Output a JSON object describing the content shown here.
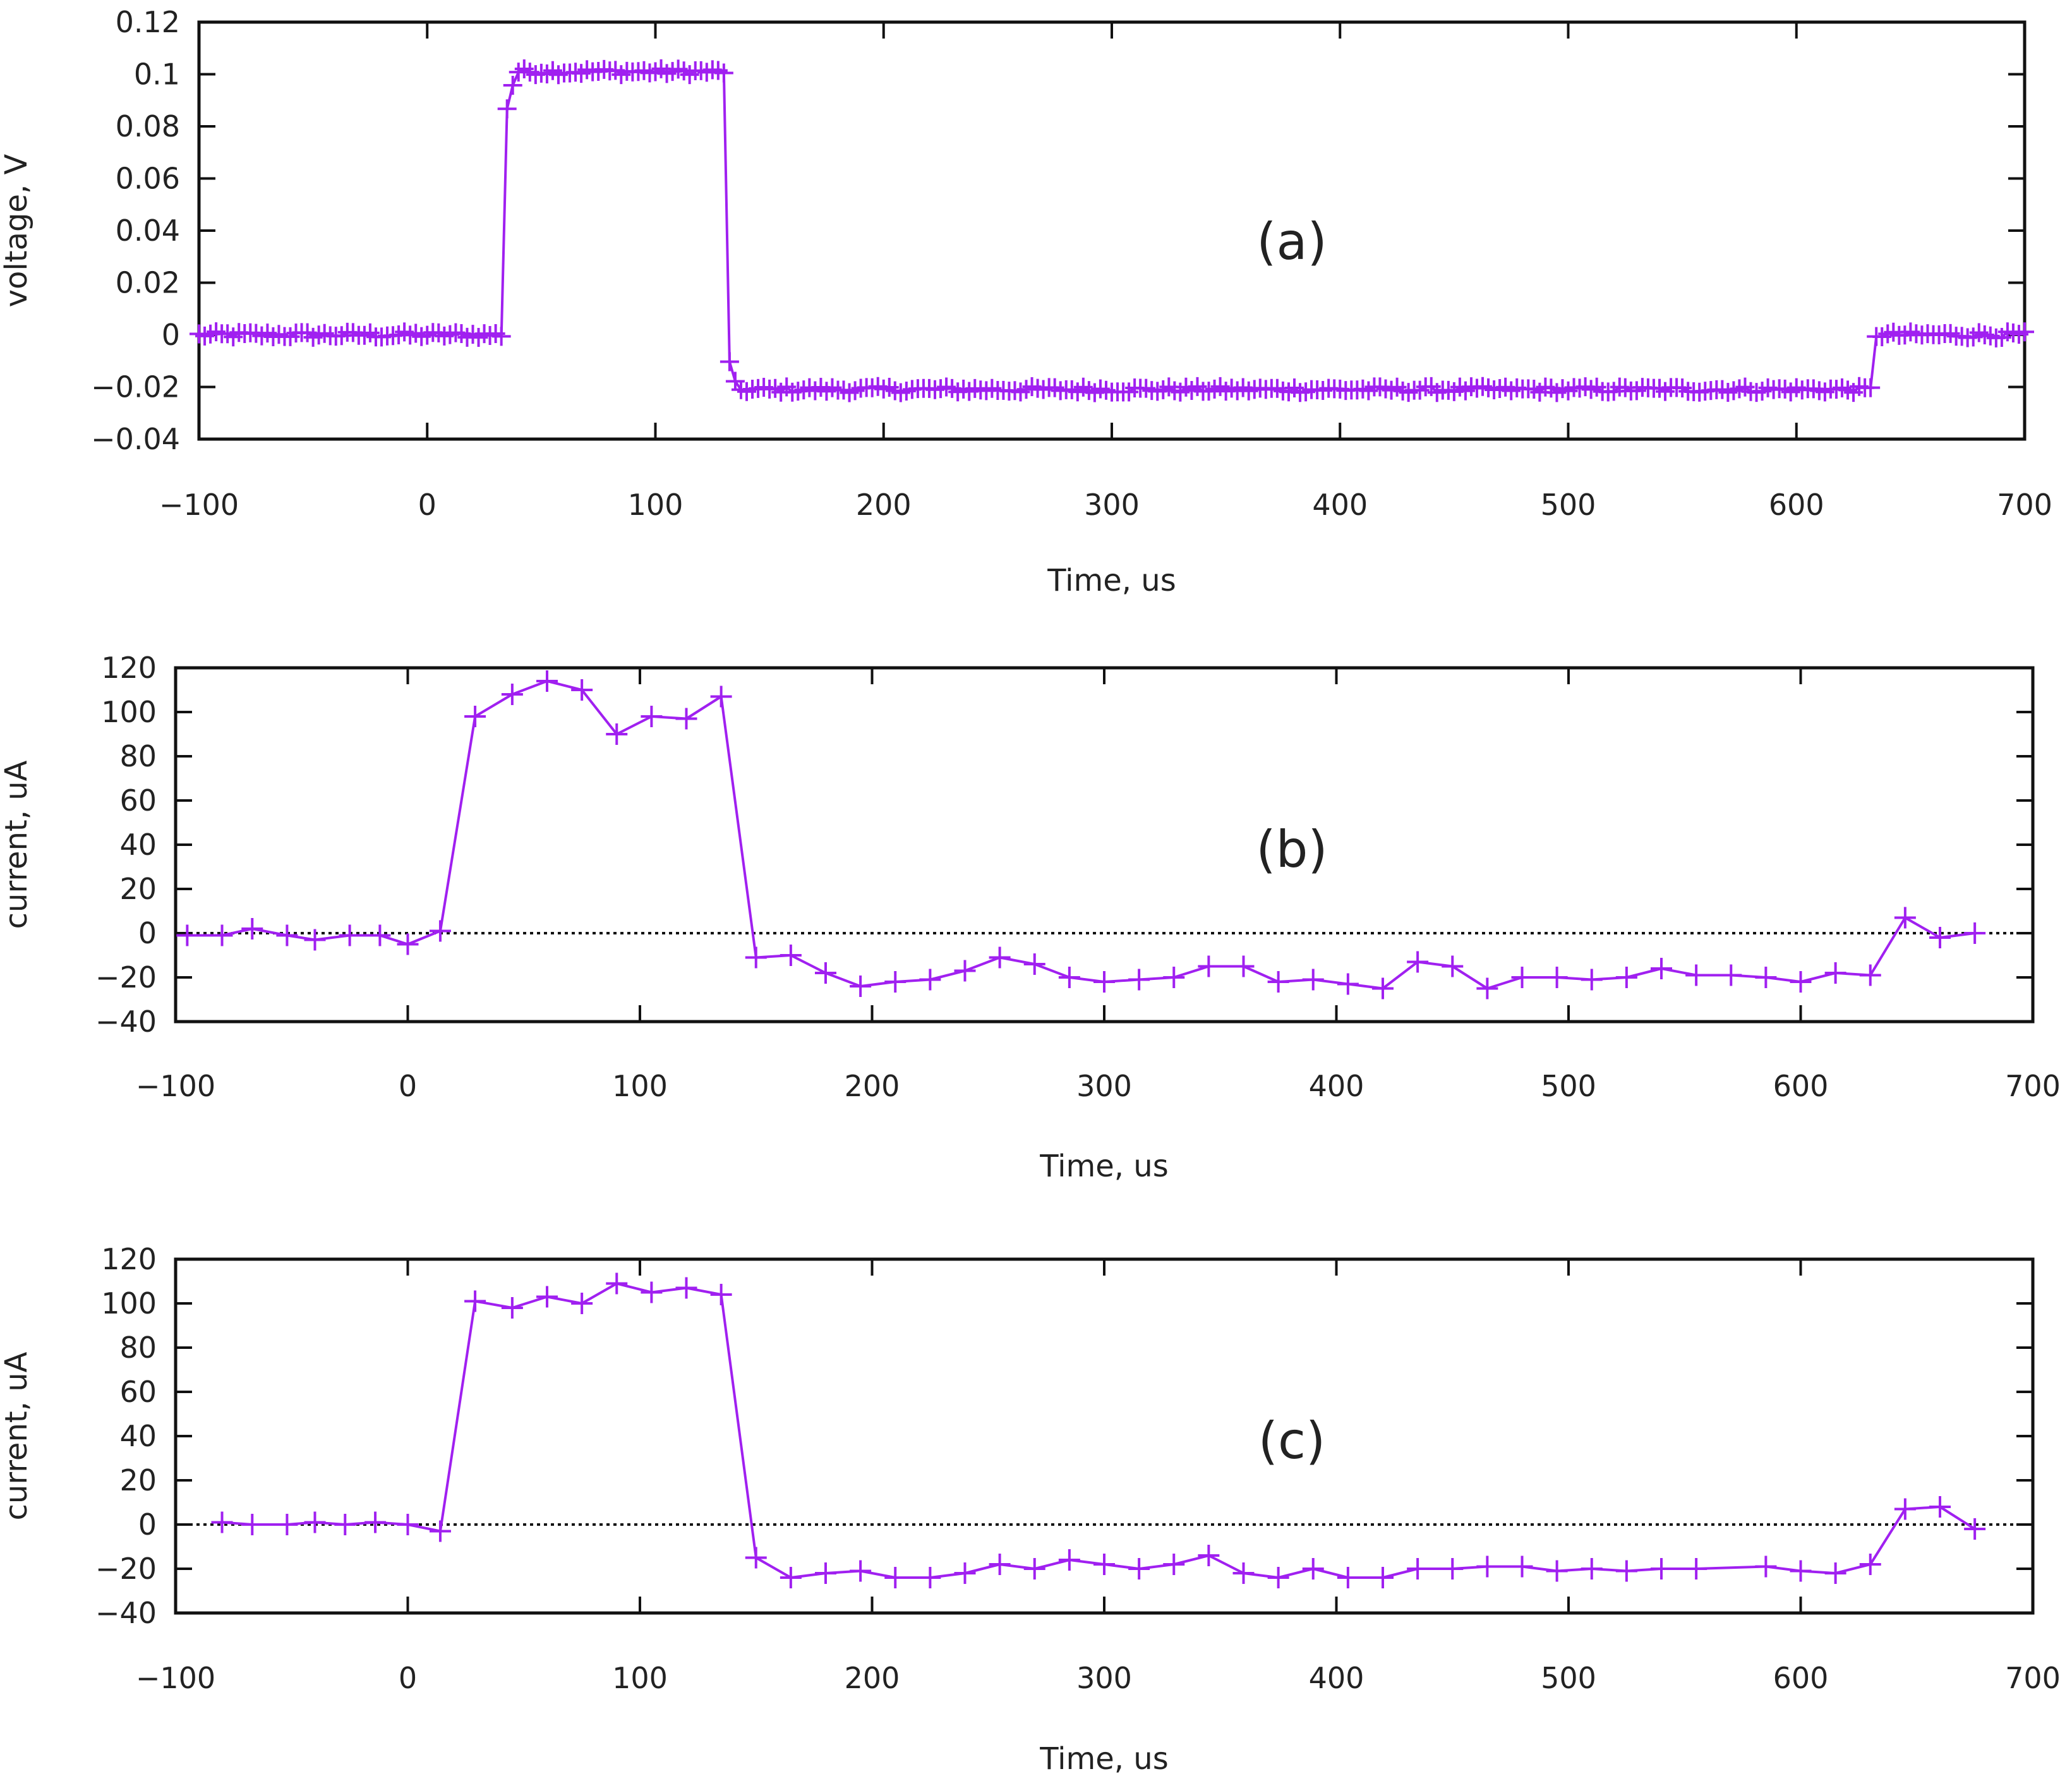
{
  "chart_data": [
    {
      "type": "line",
      "panel_label": "(a)",
      "xlabel": "Time, us",
      "ylabel": "voltage, V",
      "xlim": [
        -100,
        700
      ],
      "ylim": [
        -0.04,
        0.12
      ],
      "x_ticks": [
        "−100",
        "0",
        "100",
        "200",
        "300",
        "400",
        "500",
        "600",
        "700"
      ],
      "y_ticks": [
        "−0.04",
        "−0.02",
        "0",
        "0.02",
        "0.04",
        "0.06",
        "0.08",
        "0.1",
        "0.12"
      ],
      "zero_line": false,
      "color": "#a020f0",
      "series": [
        {
          "name": "voltage",
          "sampling": {
            "x_start": -100,
            "x_end": 700,
            "step": 2.5
          },
          "segments": [
            {
              "from": -100,
              "to": 34,
              "value": 0.0
            },
            {
              "from": 34,
              "to": 36,
              "value": 0.087
            },
            {
              "from": 36,
              "to": 38,
              "value": 0.096
            },
            {
              "from": 38,
              "to": 132,
              "value": 0.101
            },
            {
              "from": 132,
              "to": 135,
              "value": -0.011
            },
            {
              "from": 135,
              "to": 137,
              "value": -0.019
            },
            {
              "from": 137,
              "to": 633,
              "value": -0.021
            },
            {
              "from": 633,
              "to": 700,
              "value": 0.0
            }
          ],
          "noise": 0.0012
        }
      ]
    },
    {
      "type": "line",
      "panel_label": "(b)",
      "xlabel": "Time, us",
      "ylabel": "current, uA",
      "xlim": [
        -100,
        700
      ],
      "ylim": [
        -40,
        120
      ],
      "x_ticks": [
        "−100",
        "0",
        "100",
        "200",
        "300",
        "400",
        "500",
        "600",
        "700"
      ],
      "y_ticks": [
        "−40",
        "−20",
        "0",
        "20",
        "40",
        "60",
        "80",
        "100",
        "120"
      ],
      "zero_line": true,
      "color": "#a020f0",
      "series": [
        {
          "name": "current",
          "x": [
            -95,
            -80,
            -67,
            -52,
            -40,
            -25,
            -12,
            0,
            14,
            29,
            45,
            60,
            75,
            90,
            105,
            120,
            135,
            150,
            165,
            180,
            195,
            210,
            225,
            240,
            255,
            270,
            285,
            300,
            315,
            330,
            345,
            360,
            375,
            390,
            405,
            420,
            435,
            450,
            465,
            480,
            495,
            510,
            525,
            540,
            555,
            570,
            585,
            600,
            615,
            630,
            645,
            660,
            675
          ],
          "y": [
            -1,
            -1,
            2,
            -1,
            -3,
            -1,
            -1,
            -5,
            1,
            98,
            108,
            114,
            110,
            90,
            98,
            97,
            107,
            -11,
            -10,
            -18,
            -24,
            -22,
            -21,
            -17,
            -11,
            -14,
            -20,
            -22,
            -21,
            -20,
            -15,
            -15,
            -22,
            -21,
            -23,
            -25,
            -13,
            -15,
            -25,
            -20,
            -20,
            -21,
            -20,
            -16,
            -19,
            -19,
            -20,
            -22,
            -18,
            -19,
            7,
            -2,
            0
          ]
        }
      ]
    },
    {
      "type": "line",
      "panel_label": "(c)",
      "xlabel": "Time, us",
      "ylabel": "current, uA",
      "xlim": [
        -100,
        700
      ],
      "ylim": [
        -40,
        120
      ],
      "x_ticks": [
        "−100",
        "0",
        "100",
        "200",
        "300",
        "400",
        "500",
        "600",
        "700"
      ],
      "y_ticks": [
        "−40",
        "−20",
        "0",
        "20",
        "40",
        "60",
        "80",
        "100",
        "120"
      ],
      "zero_line": true,
      "color": "#a020f0",
      "series": [
        {
          "name": "current",
          "x": [
            -80,
            -67,
            -52,
            -40,
            -27,
            -14,
            0,
            14,
            29,
            45,
            60,
            75,
            90,
            105,
            120,
            135,
            150,
            165,
            180,
            195,
            210,
            225,
            240,
            255,
            270,
            285,
            300,
            315,
            330,
            345,
            360,
            375,
            390,
            405,
            420,
            435,
            450,
            465,
            480,
            495,
            510,
            525,
            540,
            555,
            585,
            600,
            615,
            630,
            645,
            660,
            675
          ],
          "y": [
            1,
            0,
            0,
            1,
            0,
            1,
            0,
            -3,
            101,
            98,
            103,
            100,
            109,
            105,
            107,
            104,
            -15,
            -24,
            -22,
            -21,
            -24,
            -24,
            -22,
            -18,
            -20,
            -16,
            -18,
            -20,
            -18,
            -14,
            -22,
            -24,
            -20,
            -24,
            -24,
            -20,
            -20,
            -19,
            -19,
            -21,
            -20,
            -21,
            -20,
            -20,
            -19,
            -21,
            -22,
            -18,
            7,
            8,
            -2
          ]
        }
      ]
    }
  ]
}
